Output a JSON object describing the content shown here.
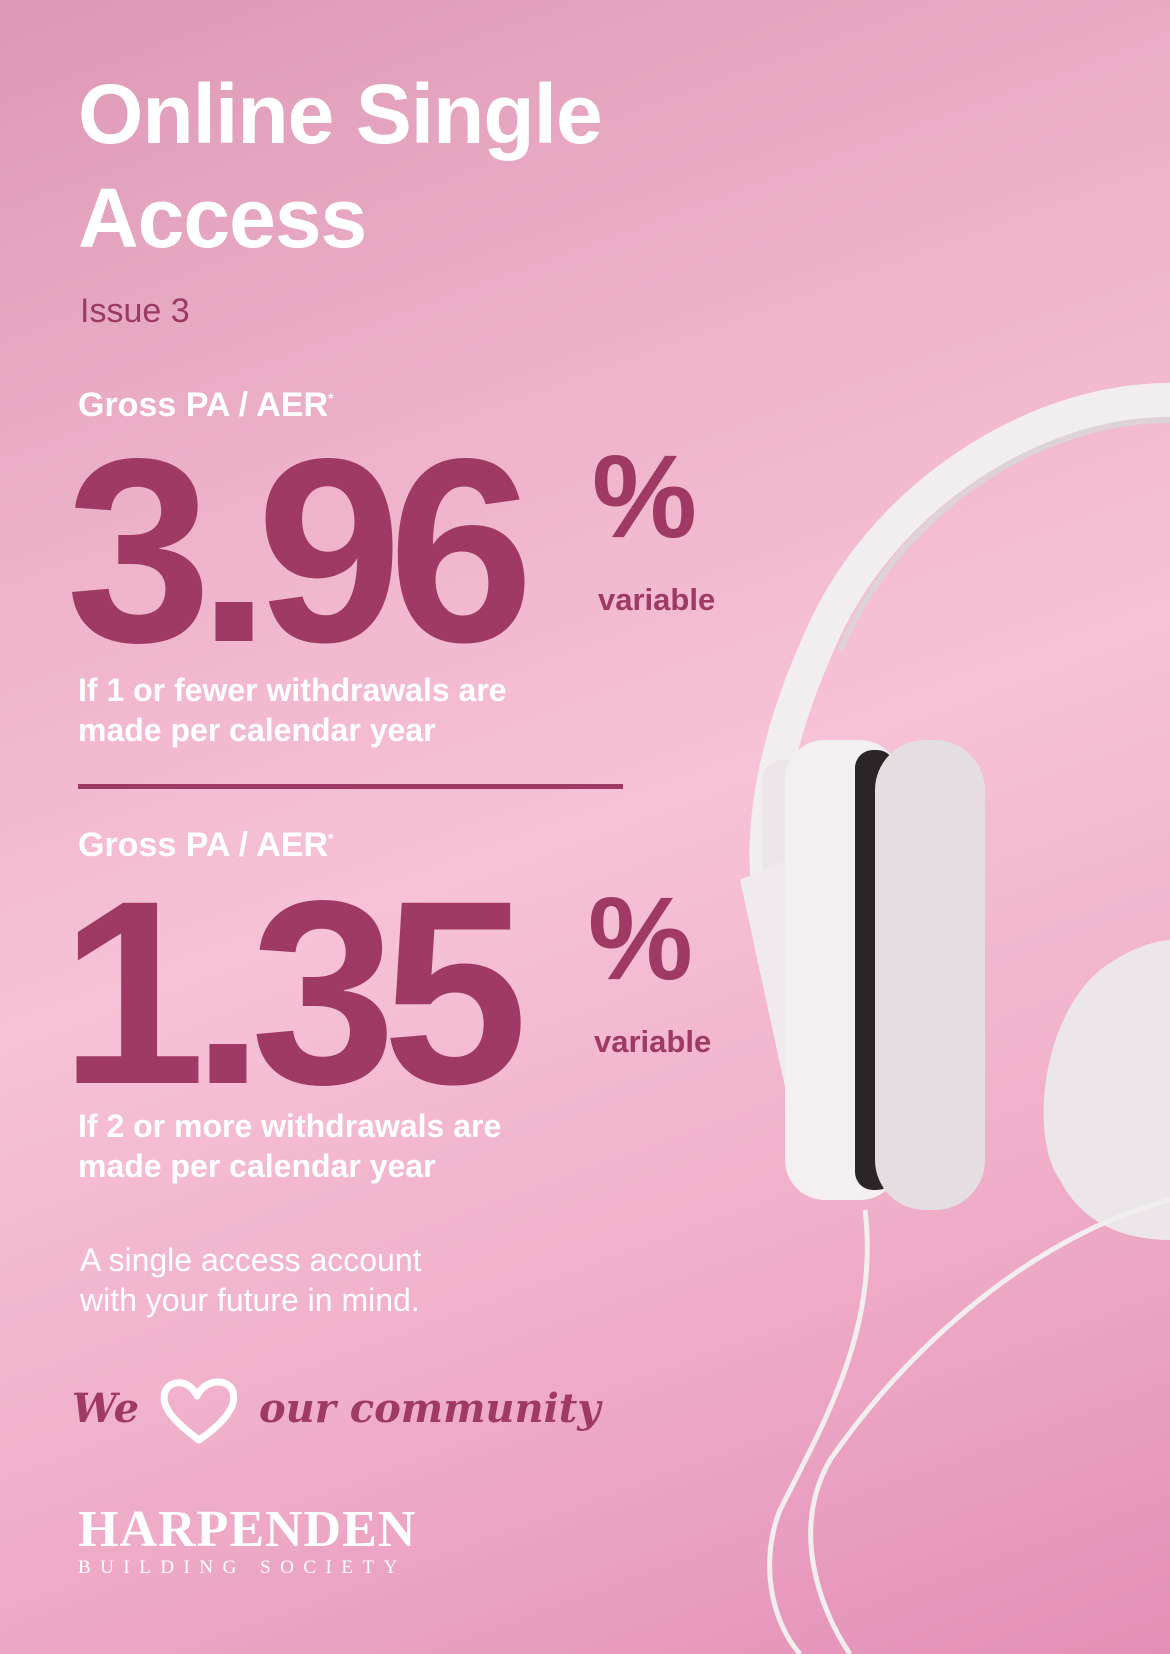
{
  "title_lines": [
    "Online Single",
    "Access"
  ],
  "issue": "Issue 3",
  "rates": [
    {
      "label": "Gross PA / AER",
      "asterisk": "*",
      "value": "3.96",
      "unit": "%",
      "type": "variable",
      "condition_lines": [
        "If 1 or fewer withdrawals are",
        "made per calendar year"
      ]
    },
    {
      "label": "Gross PA / AER",
      "asterisk": "*",
      "value": "1.35",
      "unit": "%",
      "type": "variable",
      "condition_lines": [
        "If 2 or more withdrawals are",
        "made per calendar year"
      ]
    }
  ],
  "tagline_lines": [
    "A single access account",
    "with your future in mind."
  ],
  "slogan": {
    "before": "We",
    "after": "our community",
    "icon": "heart-icon"
  },
  "brand": {
    "name": "HARPENDEN",
    "sub": "BUILDING SOCIETY"
  },
  "colors": {
    "accent": "#9e3a63",
    "text_light": "#ffffff",
    "background": "#f4bcd3"
  }
}
